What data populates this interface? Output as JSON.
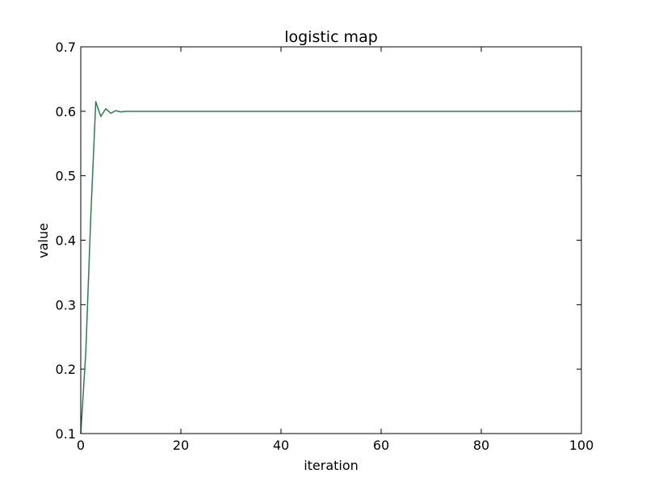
{
  "chart_data": {
    "type": "line",
    "title": "logistic map",
    "xlabel": "iteration",
    "ylabel": "value",
    "xlim": [
      0,
      100
    ],
    "ylim": [
      0.1,
      0.7
    ],
    "x_ticks": [
      "0",
      "20",
      "40",
      "60",
      "80",
      "100"
    ],
    "y_ticks": [
      "0.1",
      "0.2",
      "0.3",
      "0.4",
      "0.5",
      "0.6",
      "0.7"
    ],
    "grid": false,
    "series": [
      {
        "color": "#2e7d52",
        "x": [
          0,
          1,
          2,
          3,
          4,
          5,
          6,
          7,
          8,
          9,
          10,
          11,
          12,
          13,
          14,
          15,
          16,
          17,
          18,
          19,
          20,
          21,
          22,
          23,
          24,
          25,
          26,
          27,
          28,
          29,
          30,
          31,
          32,
          33,
          34,
          35,
          36,
          37,
          38,
          39,
          40,
          41,
          42,
          43,
          44,
          45,
          46,
          47,
          48,
          49,
          50,
          51,
          52,
          53,
          54,
          55,
          56,
          57,
          58,
          59,
          60,
          61,
          62,
          63,
          64,
          65,
          66,
          67,
          67,
          68,
          69,
          70,
          71,
          72,
          73,
          74,
          75,
          76,
          77,
          78,
          79,
          80,
          81,
          82,
          83,
          84,
          85,
          86,
          87,
          88,
          89,
          90,
          91,
          92,
          93,
          94,
          95,
          96,
          97,
          98,
          99
        ],
        "y": [
          0.1,
          0.225,
          0.436,
          0.615,
          0.592,
          0.604,
          0.597,
          0.601,
          0.599,
          0.6,
          0.6,
          0.6,
          0.6,
          0.6,
          0.6,
          0.6,
          0.6,
          0.6,
          0.6,
          0.6,
          0.6,
          0.6,
          0.6,
          0.6,
          0.6,
          0.6,
          0.6,
          0.6,
          0.6,
          0.6,
          0.6,
          0.6,
          0.6,
          0.6,
          0.6,
          0.6,
          0.6,
          0.6,
          0.6,
          0.6,
          0.6,
          0.6,
          0.6,
          0.6,
          0.6,
          0.6,
          0.6,
          0.6,
          0.6,
          0.6,
          0.6,
          0.6,
          0.6,
          0.6,
          0.6,
          0.6,
          0.6,
          0.6,
          0.6,
          0.6,
          0.6,
          0.6,
          0.6,
          0.6,
          0.6,
          0.6,
          0.6,
          0.6,
          0.6,
          0.6,
          0.6,
          0.6,
          0.6,
          0.6,
          0.6,
          0.6,
          0.6,
          0.6,
          0.6,
          0.6,
          0.6,
          0.6,
          0.6,
          0.6,
          0.6,
          0.6,
          0.6,
          0.6,
          0.6,
          0.6,
          0.6,
          0.6,
          0.6,
          0.6,
          0.6,
          0.6,
          0.6,
          0.6,
          0.6,
          0.6,
          0.6
        ]
      }
    ]
  }
}
